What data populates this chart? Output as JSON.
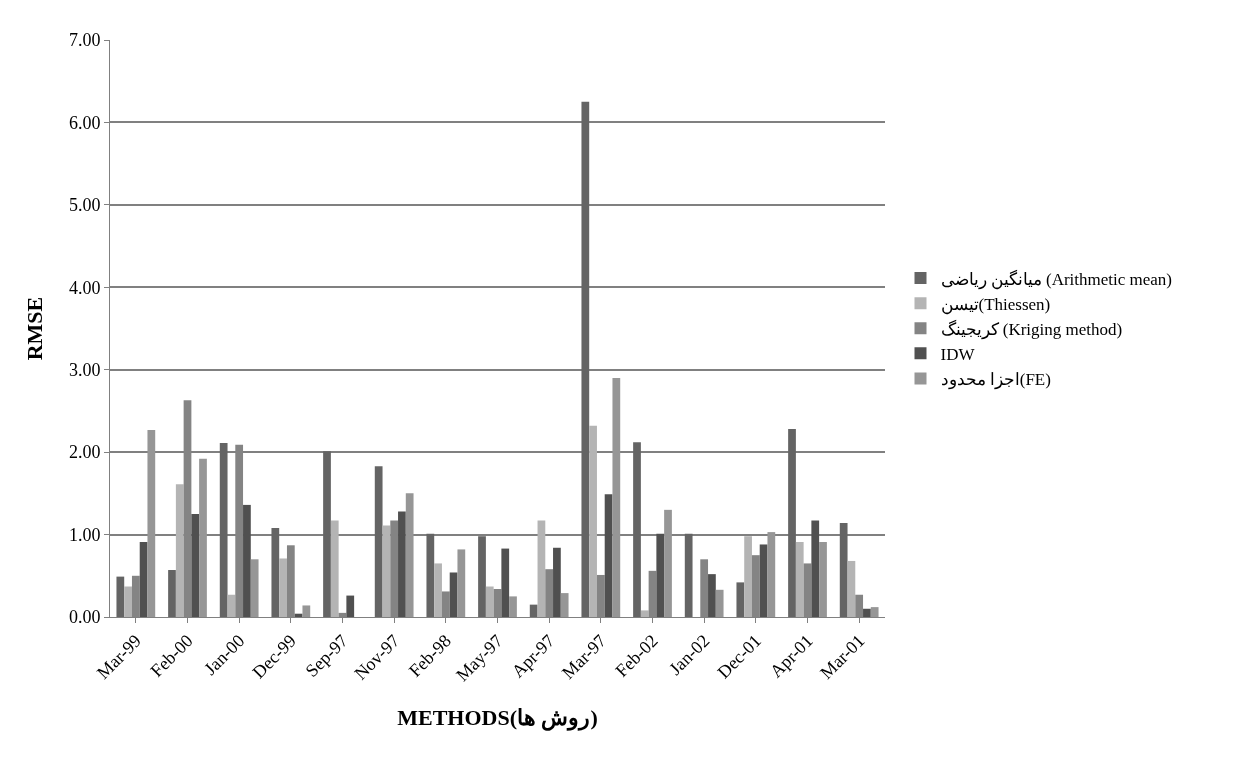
{
  "chart_data": {
    "type": "bar",
    "xlabel": "METHODS(روش ها)",
    "ylabel": "RMSE",
    "categories": [
      "Mar-99",
      "Feb-00",
      "Jan-00",
      "Dec-99",
      "Sep-97",
      "Nov-97",
      "Feb-98",
      "May-97",
      "Apr-97",
      "Mar-97",
      "Feb-02",
      "Jan-02",
      "Dec-01",
      "Apr-01",
      "Mar-01"
    ],
    "series": [
      {
        "name": "میانگین ریاضی (Arithmetic mean)",
        "color": "#646464",
        "values": [
          0.49,
          0.57,
          2.11,
          1.08,
          2.01,
          1.83,
          1.01,
          0.98,
          0.15,
          6.25,
          2.12,
          1.01,
          0.42,
          2.28,
          1.14
        ]
      },
      {
        "name": "تیسن(Thiessen)",
        "color": "#b4b4b4",
        "values": [
          0.37,
          1.61,
          0.27,
          0.71,
          1.17,
          1.11,
          0.65,
          0.37,
          1.17,
          2.32,
          0.08,
          0.0,
          0.98,
          0.91,
          0.68
        ]
      },
      {
        "name": "کریجینگ (Kriging method)",
        "color": "#848484",
        "values": [
          0.5,
          2.63,
          2.09,
          0.87,
          0.05,
          1.17,
          0.31,
          0.34,
          0.58,
          0.51,
          0.56,
          0.7,
          0.75,
          0.65,
          0.27
        ]
      },
      {
        "name": "IDW",
        "color": "#505050",
        "values": [
          0.91,
          1.25,
          1.36,
          0.04,
          0.26,
          1.28,
          0.54,
          0.83,
          0.84,
          1.49,
          1.01,
          0.52,
          0.88,
          1.17,
          0.1
        ]
      },
      {
        "name": "اجزا محدود(FE)",
        "color": "#969696",
        "values": [
          2.27,
          1.92,
          0.7,
          0.14,
          null,
          1.5,
          0.82,
          0.25,
          0.29,
          2.9,
          1.3,
          0.33,
          1.03,
          0.91,
          0.12
        ]
      }
    ],
    "ylim": [
      0,
      7
    ],
    "yticks": [
      {
        "value": 0,
        "label": "0.00"
      },
      {
        "value": 1,
        "label": "1.00"
      },
      {
        "value": 2,
        "label": "2.00"
      },
      {
        "value": 3,
        "label": "3.00"
      },
      {
        "value": 4,
        "label": "4.00"
      },
      {
        "value": 5,
        "label": "5.00"
      },
      {
        "value": 6,
        "label": "6.00"
      },
      {
        "value": 7,
        "label": "7.00"
      }
    ],
    "grid": "y",
    "legend": "right"
  }
}
